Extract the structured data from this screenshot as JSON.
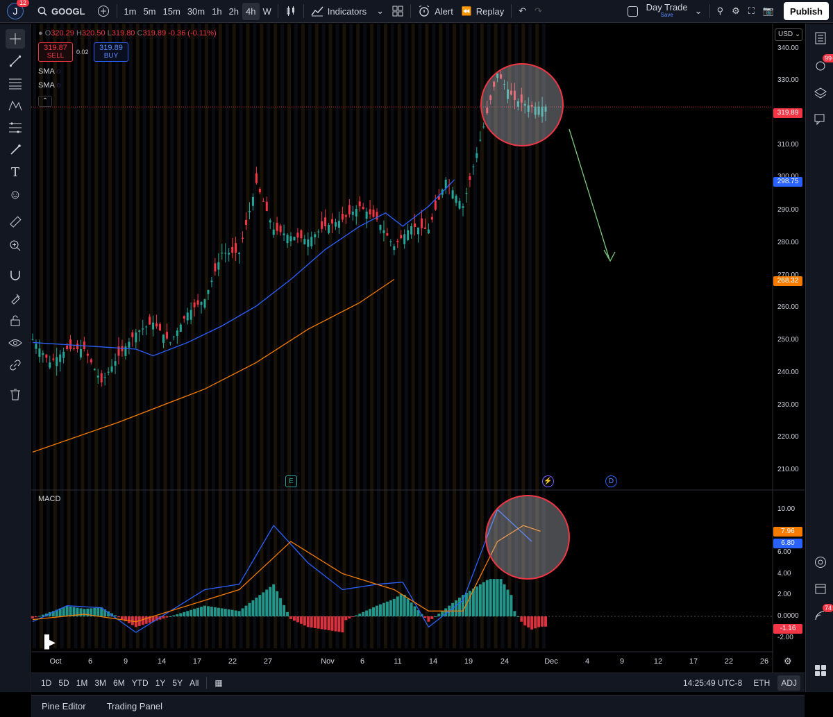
{
  "topbar": {
    "avatar_letter": "J",
    "notifications": "12",
    "symbol": "GOOGL",
    "timeframes": [
      "1m",
      "5m",
      "15m",
      "30m",
      "1h",
      "2h",
      "4h",
      "W"
    ],
    "active_timeframe": "4h",
    "indicators": "Indicators",
    "alert": "Alert",
    "replay": "Replay",
    "layout_name": "Day Trade",
    "layout_sub": "Save",
    "publish": "Publish"
  },
  "legend": {
    "o_label": "O",
    "o": "320.29",
    "h_label": "H",
    "h": "320.50",
    "l_label": "L",
    "l": "319.80",
    "c_label": "C",
    "c": "319.89",
    "change": "-0.36 (-0.11%)",
    "sell_price": "319.87",
    "sell_label": "SELL",
    "buy_price": "319.89",
    "buy_label": "BUY",
    "spread": "0.02",
    "sma1": "SMA",
    "sma2": "SMA"
  },
  "currency": "USD",
  "price_axis": [
    "340.00",
    "330.00",
    "310.00",
    "300.00",
    "290.00",
    "280.00",
    "270.00",
    "260.00",
    "250.00",
    "240.00",
    "230.00",
    "220.00",
    "210.00"
  ],
  "price_labels": {
    "last": "319.89",
    "sma_blue": "298.75",
    "sma_orange": "268.32"
  },
  "macd": {
    "title": "MACD",
    "axis": [
      "10.00",
      "8.00",
      "6.00",
      "4.00",
      "2.00",
      "0.0000",
      "-2.00"
    ],
    "signal_value": "7.96",
    "macd_value": "6.80",
    "hist_value": "-1.16"
  },
  "dates": [
    "Oct",
    "6",
    "9",
    "14",
    "17",
    "22",
    "27",
    "Nov",
    "6",
    "11",
    "14",
    "19",
    "24",
    "Dec",
    "4",
    "9",
    "12",
    "17",
    "22",
    "26"
  ],
  "events": {
    "earnings": "E",
    "dividend": "D"
  },
  "bottombar": {
    "ranges": [
      "1D",
      "5D",
      "1M",
      "3M",
      "6M",
      "YTD",
      "1Y",
      "5Y",
      "All"
    ],
    "time": "14:25:49 UTC-8",
    "session": "ETH",
    "adj": "ADJ"
  },
  "footer": {
    "pine": "Pine Editor",
    "trading": "Trading Panel"
  },
  "rightbar": {
    "badge1": "99+",
    "badge2": "74"
  },
  "colors": {
    "up": "#26a69a",
    "down": "#f23645",
    "sma_blue": "#2962ff",
    "sma_orange": "#f57c00",
    "bg": "#000000"
  },
  "chart_data": {
    "type": "candlestick",
    "symbol": "GOOGL",
    "timeframe": "4h",
    "ylim": [
      205,
      345
    ],
    "close_trend": [
      [
        0,
        250
      ],
      [
        10,
        243
      ],
      [
        20,
        247
      ],
      [
        30,
        247
      ],
      [
        40,
        237
      ],
      [
        50,
        245
      ],
      [
        60,
        252
      ],
      [
        70,
        255
      ],
      [
        80,
        249
      ],
      [
        90,
        258
      ],
      [
        100,
        262
      ],
      [
        110,
        276
      ],
      [
        120,
        276
      ],
      [
        130,
        297
      ],
      [
        140,
        283
      ],
      [
        150,
        281
      ],
      [
        160,
        280
      ],
      [
        170,
        284
      ],
      [
        180,
        286
      ],
      [
        190,
        290
      ],
      [
        200,
        286
      ],
      [
        210,
        278
      ],
      [
        220,
        284
      ],
      [
        230,
        283
      ],
      [
        240,
        298
      ],
      [
        250,
        290
      ],
      [
        260,
        310
      ],
      [
        270,
        330
      ],
      [
        280,
        322
      ],
      [
        290,
        320
      ]
    ],
    "sma_blue": [
      [
        0,
        249
      ],
      [
        30,
        248
      ],
      [
        60,
        247
      ],
      [
        70,
        245
      ],
      [
        90,
        249
      ],
      [
        110,
        254
      ],
      [
        130,
        260
      ],
      [
        150,
        268
      ],
      [
        170,
        277
      ],
      [
        190,
        284
      ],
      [
        205,
        288
      ],
      [
        215,
        284
      ],
      [
        230,
        290
      ],
      [
        245,
        298
      ]
    ],
    "sma_orange": [
      [
        0,
        216
      ],
      [
        50,
        225
      ],
      [
        100,
        235
      ],
      [
        130,
        243
      ],
      [
        160,
        253
      ],
      [
        190,
        261
      ],
      [
        210,
        268
      ]
    ],
    "macd_line": [
      [
        0,
        -0.5
      ],
      [
        20,
        1
      ],
      [
        40,
        0.8
      ],
      [
        60,
        -1.5
      ],
      [
        80,
        0.5
      ],
      [
        100,
        2.5
      ],
      [
        120,
        3
      ],
      [
        140,
        8.5
      ],
      [
        160,
        5
      ],
      [
        180,
        2.5
      ],
      [
        200,
        3
      ],
      [
        215,
        3.2
      ],
      [
        230,
        -1
      ],
      [
        250,
        1.5
      ],
      [
        270,
        10
      ],
      [
        290,
        7
      ]
    ],
    "signal_line": [
      [
        0,
        -0.3
      ],
      [
        30,
        0.2
      ],
      [
        60,
        -0.5
      ],
      [
        90,
        1
      ],
      [
        120,
        2.5
      ],
      [
        150,
        7
      ],
      [
        180,
        4
      ],
      [
        210,
        2.5
      ],
      [
        230,
        0.5
      ],
      [
        250,
        0.5
      ],
      [
        270,
        7
      ],
      [
        285,
        8.5
      ],
      [
        295,
        7.96
      ]
    ]
  }
}
